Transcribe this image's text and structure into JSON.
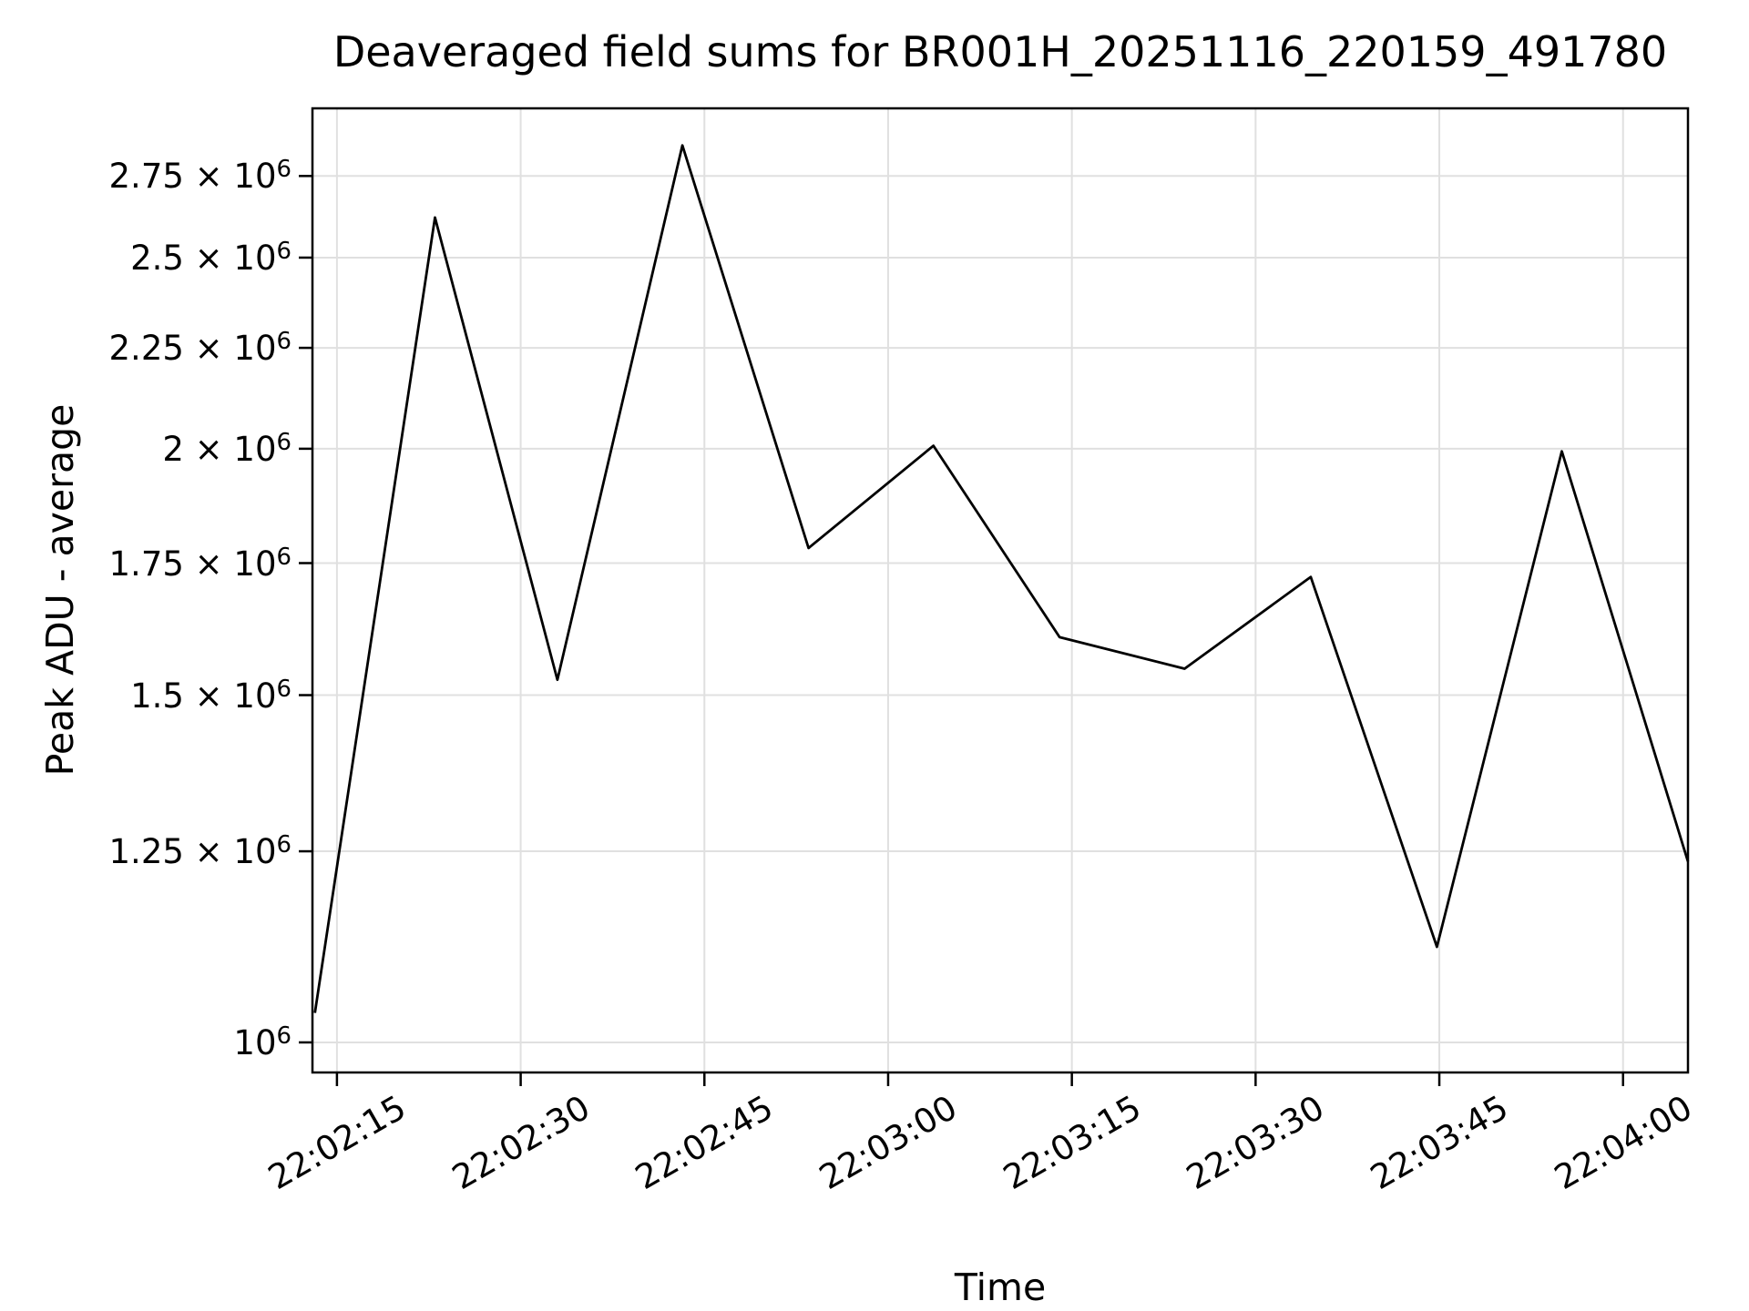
{
  "figure": {
    "background": "#ffffff",
    "text_color": "#000000"
  },
  "chart_data": {
    "type": "line",
    "title": "Deaveraged field sums for BR001H_20251116_220159_491780",
    "xlabel": "Time",
    "ylabel": "Peak ADU - average",
    "yscale": "log",
    "grid": true,
    "legend": "none",
    "line_color": "#000000",
    "grid_color": "#e0e0e0",
    "x_lim_sec": [
      -2.0,
      110.3
    ],
    "y_lim": [
      965500,
      2976000
    ],
    "x_ticks": [
      {
        "label": "22:02:15",
        "sec": 0
      },
      {
        "label": "22:02:30",
        "sec": 15
      },
      {
        "label": "22:02:45",
        "sec": 30
      },
      {
        "label": "22:03:00",
        "sec": 45
      },
      {
        "label": "22:03:15",
        "sec": 60
      },
      {
        "label": "22:03:30",
        "sec": 75
      },
      {
        "label": "22:03:45",
        "sec": 90
      },
      {
        "label": "22:04:00",
        "sec": 105
      }
    ],
    "y_ticks": [
      {
        "value": 1000000,
        "label": "10^6"
      },
      {
        "value": 1250000,
        "label": "1.25 × 10^6"
      },
      {
        "value": 1500000,
        "label": "1.5 × 10^6"
      },
      {
        "value": 1750000,
        "label": "1.75 × 10^6"
      },
      {
        "value": 2000000,
        "label": "2 × 10^6"
      },
      {
        "value": 2250000,
        "label": "2.25 × 10^6"
      },
      {
        "value": 2500000,
        "label": "2.5 × 10^6"
      },
      {
        "value": 2750000,
        "label": "2.75 × 10^6"
      }
    ],
    "series": [
      {
        "name": "deaveraged-field-sum",
        "points": [
          {
            "time": "22:02:13",
            "sec": -1.8,
            "value": 1035000
          },
          {
            "time": "22:02:23",
            "sec": 8.0,
            "value": 2620000
          },
          {
            "time": "22:02:33",
            "sec": 18.0,
            "value": 1527000
          },
          {
            "time": "22:02:43",
            "sec": 28.2,
            "value": 2850000
          },
          {
            "time": "22:02:54",
            "sec": 38.5,
            "value": 1781000
          },
          {
            "time": "22:03:04",
            "sec": 48.7,
            "value": 2007000
          },
          {
            "time": "22:03:14",
            "sec": 59.0,
            "value": 1605000
          },
          {
            "time": "22:03:24",
            "sec": 69.2,
            "value": 1547000
          },
          {
            "time": "22:03:35",
            "sec": 79.5,
            "value": 1722000
          },
          {
            "time": "22:03:45",
            "sec": 89.8,
            "value": 1118000
          },
          {
            "time": "22:03:55",
            "sec": 100.0,
            "value": 1994000
          },
          {
            "time": "22:04:05",
            "sec": 110.3,
            "value": 1235000
          }
        ]
      }
    ]
  }
}
